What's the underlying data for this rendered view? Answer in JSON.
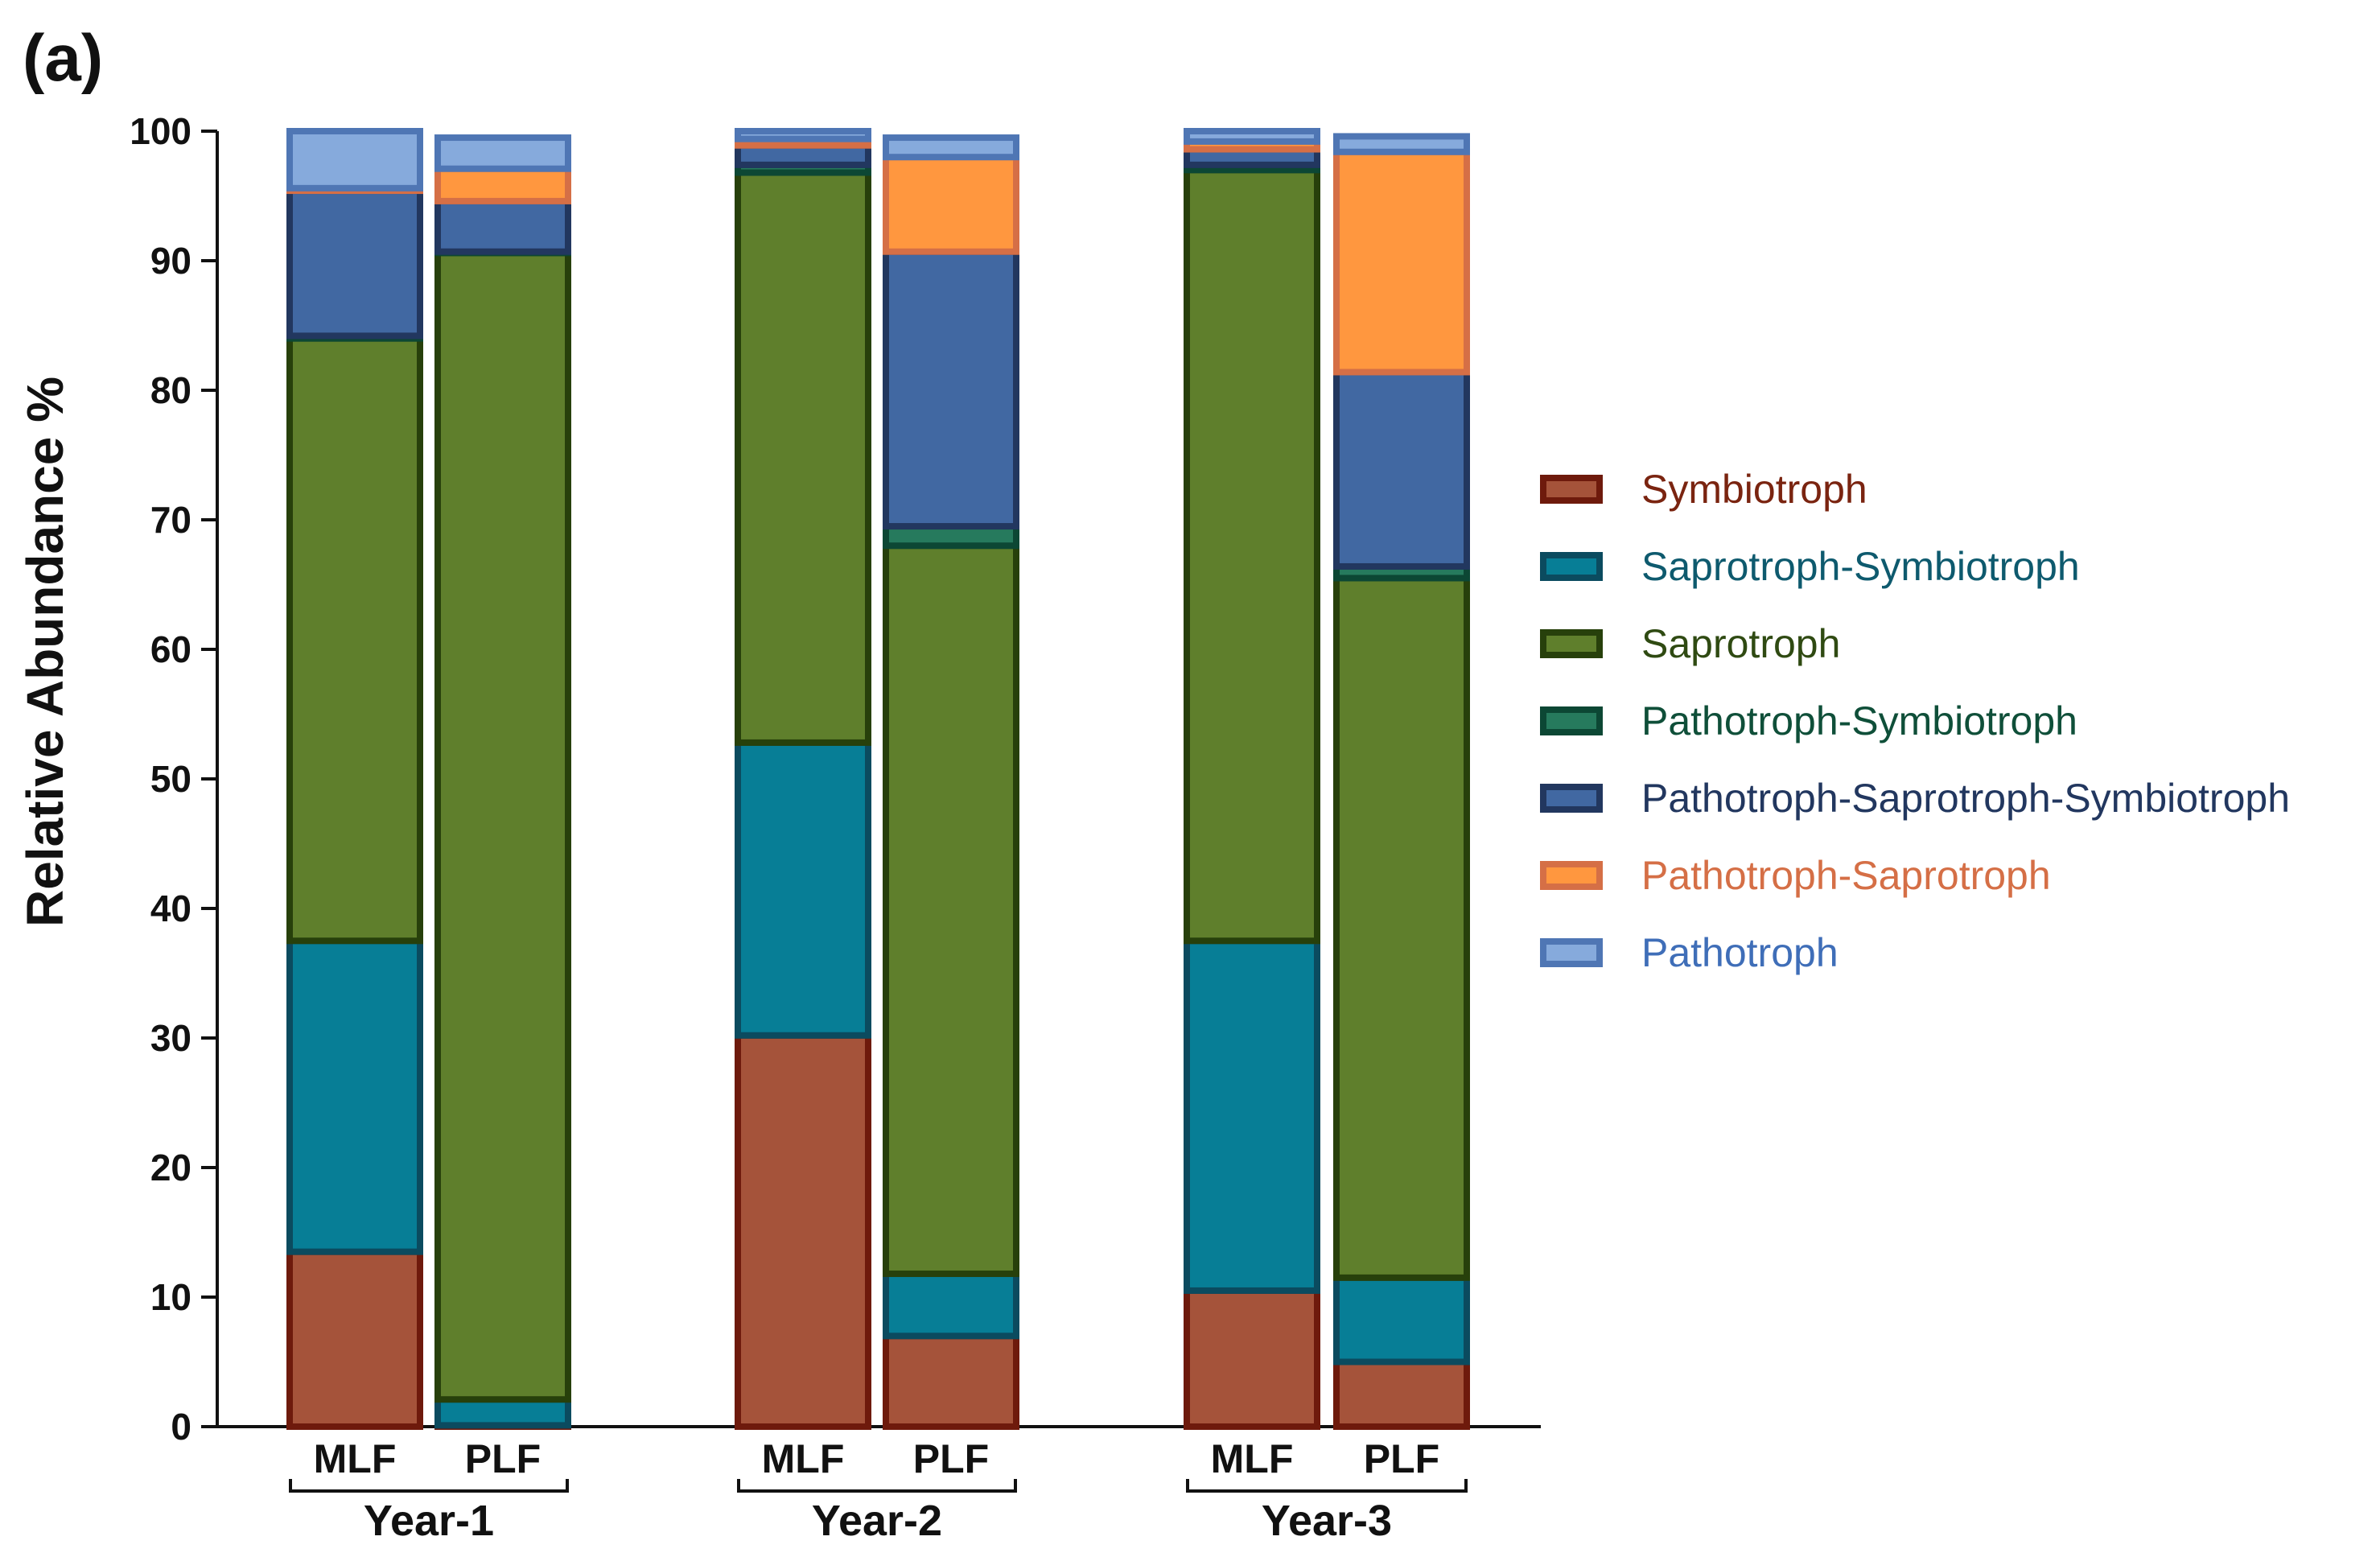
{
  "panel_label": "(a)",
  "chart_data": {
    "type": "bar",
    "stacked": true,
    "title": "",
    "xlabel": "",
    "ylabel": "Relative Abundance  %",
    "ylim": [
      0,
      100
    ],
    "yticks": [
      0,
      10,
      20,
      30,
      40,
      50,
      60,
      70,
      80,
      90,
      100
    ],
    "groups": [
      {
        "label": "Year-1",
        "bars": [
          "MLF",
          "PLF"
        ]
      },
      {
        "label": "Year-2",
        "bars": [
          "MLF",
          "PLF"
        ]
      },
      {
        "label": "Year-3",
        "bars": [
          "MLF",
          "PLF"
        ]
      }
    ],
    "categories": [
      "Year-1 MLF",
      "Year-1 PLF",
      "Year-2 MLF",
      "Year-2 PLF",
      "Year-3 MLF",
      "Year-3 PLF"
    ],
    "series": [
      {
        "name": "Symbiotroph",
        "fill": "#A5533A",
        "stroke": "#6E1A0C",
        "text_color": "#7A2410",
        "values": [
          13.5,
          0.1,
          30.2,
          7.0,
          10.5,
          5.0
        ]
      },
      {
        "name": "Saprotroph-Symbiotroph",
        "fill": "#077E96",
        "stroke": "#0B4B5F",
        "text_color": "#0E5A6E",
        "values": [
          24.0,
          2.0,
          22.6,
          4.8,
          27.0,
          6.5
        ]
      },
      {
        "name": "Saprotroph",
        "fill": "#5F7F2C",
        "stroke": "#27400B",
        "text_color": "#2F4A12",
        "values": [
          46.5,
          88.5,
          44.0,
          56.2,
          59.5,
          54.0
        ]
      },
      {
        "name": "Pathotroph-Symbiotroph",
        "fill": "#267A5D",
        "stroke": "#0C4734",
        "text_color": "#0F4F39",
        "values": [
          0.2,
          0.1,
          0.6,
          1.5,
          0.4,
          0.9
        ]
      },
      {
        "name": "Pathotroph-Saprotroph-Symbiotroph",
        "fill": "#4168A2",
        "stroke": "#22375F",
        "text_color": "#22375F",
        "values": [
          11.2,
          3.9,
          1.5,
          21.2,
          1.2,
          15.0
        ]
      },
      {
        "name": "Pathotroph-Saprotroph",
        "fill": "#FF973F",
        "stroke": "#D56F46",
        "text_color": "#D56F46",
        "values": [
          0.2,
          2.5,
          0.5,
          7.3,
          0.6,
          17.0
        ]
      },
      {
        "name": "Pathotroph",
        "fill": "#86AADC",
        "stroke": "#4F76B4",
        "text_color": "#3F6EB8",
        "values": [
          4.4,
          2.4,
          0.6,
          1.5,
          0.8,
          1.2
        ]
      }
    ],
    "legend_position": "right",
    "grid": false
  }
}
